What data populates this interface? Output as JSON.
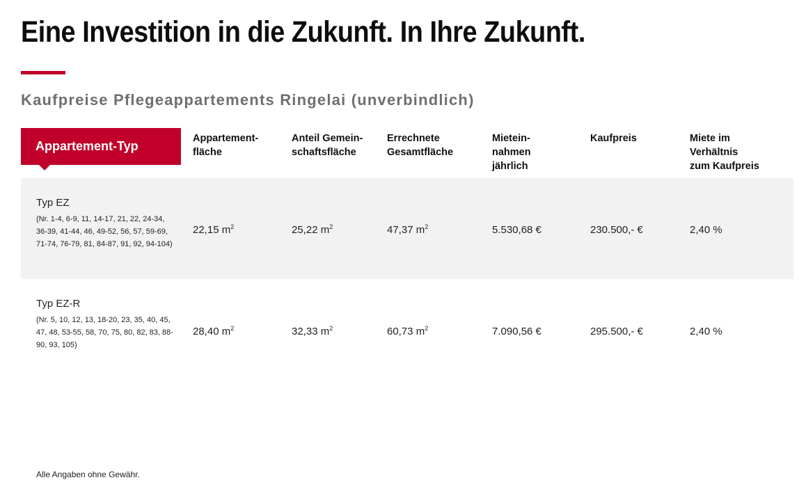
{
  "title": "Eine Investition in die Zukunft. In Ihre Zukunft.",
  "subtitle": "Kaufpreise Pflegeappartements Ringelai (unverbindlich)",
  "table": {
    "type_header": "Appartement-Typ",
    "headers": [
      "Appartement-\nfläche",
      "Anteil Gemein-\nschaftsfläche",
      "Errechnete\nGesamtfläche",
      "Mietein-\nnahmen\njährlich",
      "Kaufpreis",
      "Miete im\nVerhältnis\nzum Kaufpreis"
    ],
    "rows": [
      {
        "type": "Typ EZ",
        "numbers": "(Nr. 1-4, 6-9, 11, 14-17, 21, 22, 24-34, 36-39, 41-44, 46, 49-52, 56, 57, 59-69, 71-74, 76-79, 81, 84-87, 91, 92, 94-104)",
        "flaeche": "22,15 m",
        "gemein": "25,22 m",
        "gesamt": "47,37 m",
        "unit_sup": "2",
        "miete": "5.530,68 €",
        "kaufpreis": "230.500,- €",
        "rendite": "2,40 %"
      },
      {
        "type": "Typ EZ-R",
        "numbers": "(Nr. 5, 10, 12, 13, 18-20, 23, 35, 40, 45, 47, 48, 53-55, 58, 70, 75, 80, 82, 83, 88-90, 93, 105)",
        "flaeche": "28,40 m",
        "gemein": "32,33 m",
        "gesamt": "60,73 m",
        "unit_sup": "2",
        "miete": "7.090,56 €",
        "kaufpreis": "295.500,- €",
        "rendite": "2,40 %"
      }
    ]
  },
  "footnote": "Alle Angaben ohne Gewähr.",
  "colors": {
    "accent": "#c0002a",
    "row_shade": "#f1f2f1",
    "subtitle": "#6f6f6f"
  }
}
